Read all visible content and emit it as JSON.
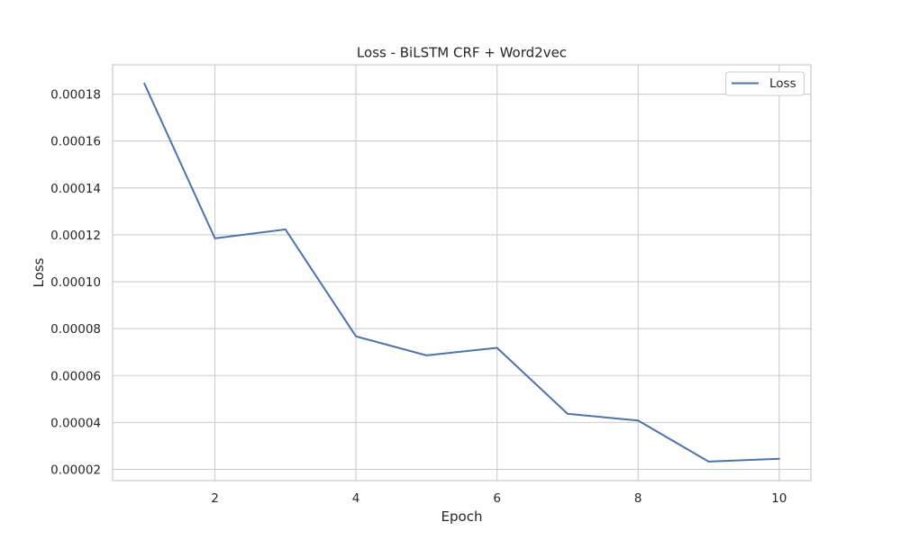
{
  "chart_data": {
    "type": "line",
    "title": "Loss - BiLSTM CRF + Word2vec",
    "xlabel": "Epoch",
    "ylabel": "Loss",
    "x": [
      1,
      2,
      3,
      4,
      5,
      6,
      7,
      8,
      9,
      10
    ],
    "series": [
      {
        "name": "Loss",
        "color": "#4c72b0",
        "values": [
          0.0001845,
          0.0001185,
          0.0001223,
          7.67e-05,
          6.86e-05,
          7.18e-05,
          4.37e-05,
          4.08e-05,
          2.33e-05,
          2.45e-05
        ]
      }
    ],
    "xticks": [
      2,
      4,
      6,
      8,
      10
    ],
    "xtick_labels": [
      "2",
      "4",
      "6",
      "8",
      "10"
    ],
    "yticks": [
      2e-05,
      4e-05,
      6e-05,
      8e-05,
      0.0001,
      0.00012,
      0.00014,
      0.00016,
      0.00018
    ],
    "ytick_labels": [
      "0.00002",
      "0.00004",
      "0.00006",
      "0.00008",
      "0.00010",
      "0.00012",
      "0.00014",
      "0.00016",
      "0.00018"
    ],
    "xlim": [
      0.55,
      10.45
    ],
    "ylim": [
      1.52e-05,
      0.0001925
    ],
    "grid": true,
    "legend": "top-right",
    "colors": {
      "grid": "#cccccc",
      "axes_edge": "#cccccc",
      "text": "#262626"
    }
  }
}
